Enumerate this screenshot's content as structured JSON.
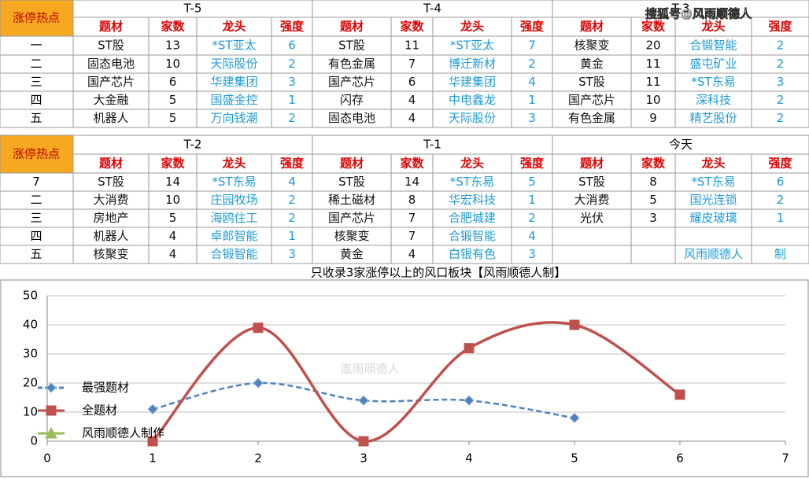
{
  "watermark": "搜狐号@风雨顺德人",
  "tables": [
    {
      "corner": "涨停热点",
      "columns": [
        "题材",
        "家数",
        "龙头",
        "强度"
      ],
      "row_labels": [
        "一",
        "二",
        "三",
        "四",
        "五"
      ],
      "groups": [
        {
          "title": "T-5",
          "rows": [
            [
              "ST股",
              13,
              "*ST亚太",
              6
            ],
            [
              "固态电池",
              10,
              "天际股份",
              2
            ],
            [
              "国产芯片",
              6,
              "华建集团",
              3
            ],
            [
              "大金融",
              5,
              "国盛金控",
              1
            ],
            [
              "机器人",
              5,
              "万向钱潮",
              2
            ]
          ]
        },
        {
          "title": "T-4",
          "rows": [
            [
              "ST股",
              11,
              "*ST亚太",
              7
            ],
            [
              "有色金属",
              7,
              "博迁新材",
              2
            ],
            [
              "国产芯片",
              6,
              "华建集团",
              4
            ],
            [
              "闪存",
              4,
              "中电鑫龙",
              1
            ],
            [
              "固态电池",
              4,
              "天际股份",
              3
            ]
          ]
        },
        {
          "title": "T-3",
          "rows": [
            [
              "核聚变",
              20,
              "合锻智能",
              2
            ],
            [
              "黄金",
              11,
              "盛屯矿业",
              2
            ],
            [
              "ST股",
              11,
              "*ST东易",
              3
            ],
            [
              "国产芯片",
              10,
              "深科技",
              2
            ],
            [
              "有色金属",
              9,
              "精艺股份",
              2
            ]
          ]
        }
      ]
    },
    {
      "corner": "涨停热点",
      "columns": [
        "题材",
        "家数",
        "龙头",
        "强度"
      ],
      "row_labels": [
        "7",
        "二",
        "三",
        "四",
        "五"
      ],
      "groups": [
        {
          "title": "T-2",
          "rows": [
            [
              "ST股",
              14,
              "*ST东易",
              4
            ],
            [
              "大消费",
              10,
              "庄园牧场",
              2
            ],
            [
              "房地产",
              5,
              "海鸥住工",
              2
            ],
            [
              "机器人",
              4,
              "卓郎智能",
              1
            ],
            [
              "核聚变",
              4,
              "合锻智能",
              3
            ]
          ]
        },
        {
          "title": "T-1",
          "rows": [
            [
              "ST股",
              14,
              "*ST东易",
              5
            ],
            [
              "稀土磁材",
              8,
              "华宏科技",
              1
            ],
            [
              "国产芯片",
              7,
              "合肥城建",
              2
            ],
            [
              "核聚变",
              7,
              "合锻智能",
              4
            ],
            [
              "黄金",
              4,
              "白银有色",
              3
            ]
          ]
        },
        {
          "title": "今天",
          "rows": [
            [
              "ST股",
              8,
              "*ST东易",
              6
            ],
            [
              "大消费",
              5,
              "国光连锁",
              2
            ],
            [
              "光伏",
              3,
              "耀皮玻璃",
              1
            ],
            [
              null,
              null,
              null,
              null
            ],
            [
              null,
              null,
              "风雨顺德人",
              "制"
            ]
          ]
        }
      ]
    }
  ],
  "chart_data": {
    "type": "line",
    "title": "只收录3家涨停以上的风口板块【风雨顺德人制】",
    "watermark": "風雨順德人",
    "xlim": [
      0,
      7
    ],
    "xticks": [
      0,
      1,
      2,
      3,
      4,
      5,
      6,
      7
    ],
    "ylim": [
      0,
      50
    ],
    "yticks": [
      0,
      10,
      20,
      30,
      40,
      50
    ],
    "grid": true,
    "legend": "left",
    "series": [
      {
        "name": "最强题材",
        "color": "#4f81bd",
        "marker": "diamond",
        "dashed": true,
        "x": [
          1,
          2,
          3,
          4,
          5
        ],
        "values": [
          11,
          20,
          14,
          14,
          8
        ]
      },
      {
        "name": "全题材",
        "color": "#c0504d",
        "marker": "square",
        "dashed": false,
        "x": [
          1,
          2,
          3,
          4,
          5,
          6
        ],
        "values": [
          0,
          39,
          0,
          32,
          40,
          16
        ]
      },
      {
        "name": "风雨顺德人制作",
        "color": "#9bbb59",
        "marker": "triangle",
        "dashed": false,
        "x": [],
        "values": []
      }
    ]
  }
}
